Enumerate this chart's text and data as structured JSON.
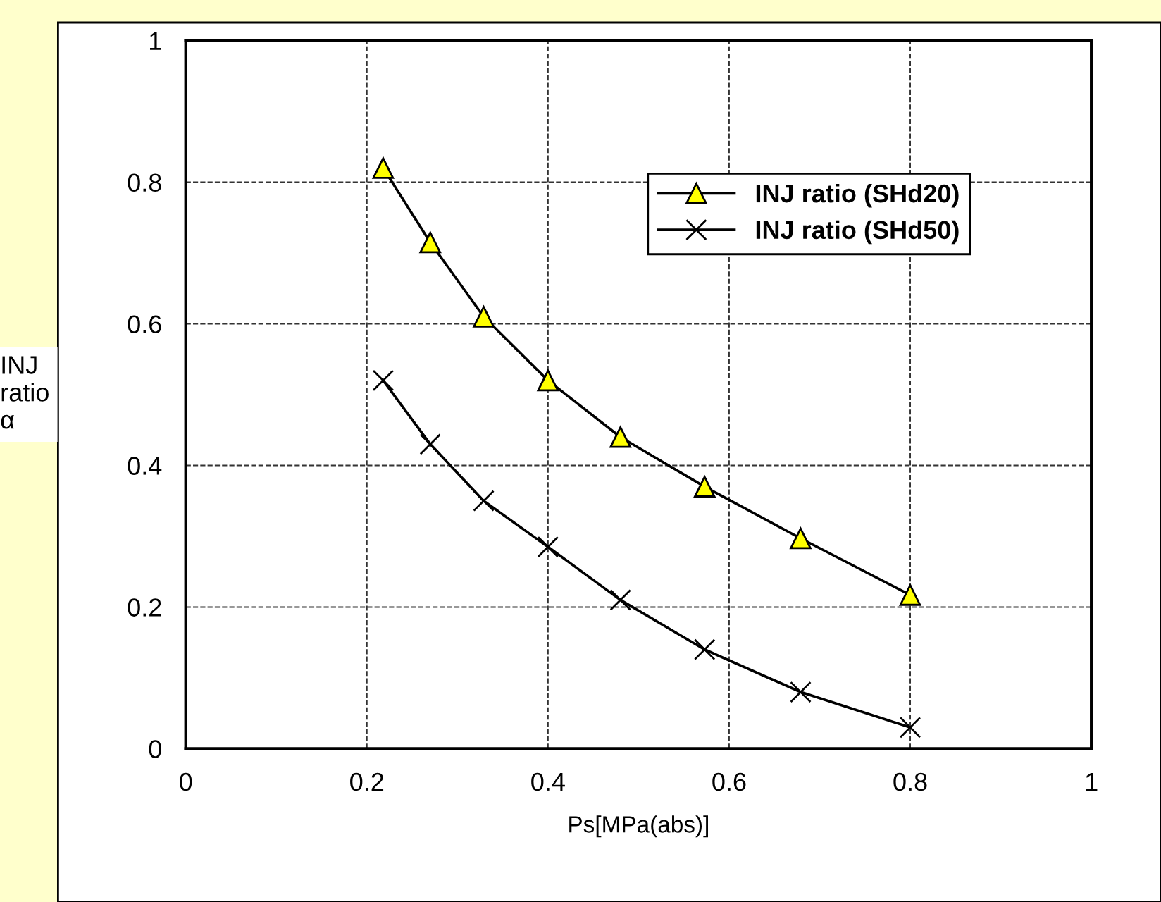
{
  "chart_data": {
    "type": "line",
    "xlabel": "Ps[MPa(abs)]",
    "ylabel": "INJ\nratio\nα",
    "x": [
      0.218,
      0.27,
      0.329,
      0.4,
      0.48,
      0.573,
      0.679,
      0.8
    ],
    "series": [
      {
        "name": "INJ ratio (SHd20)",
        "color": "#000000",
        "marker": "triangle",
        "values": [
          0.82,
          0.715,
          0.61,
          0.52,
          0.44,
          0.37,
          0.297,
          0.217
        ]
      },
      {
        "name": "INJ ratio (SHd50)",
        "color": "#000000",
        "marker": "cross",
        "values": [
          0.52,
          0.43,
          0.35,
          0.285,
          0.21,
          0.14,
          0.08,
          0.03
        ]
      }
    ],
    "xlim": [
      0,
      1
    ],
    "ylim": [
      0,
      1
    ],
    "xticks": [
      0,
      0.2,
      0.4,
      0.6,
      0.8,
      1
    ],
    "yticks": [
      0,
      0.2,
      0.4,
      0.6,
      0.8,
      1
    ],
    "grid": true,
    "legend": "top right",
    "line_style": "solid"
  }
}
